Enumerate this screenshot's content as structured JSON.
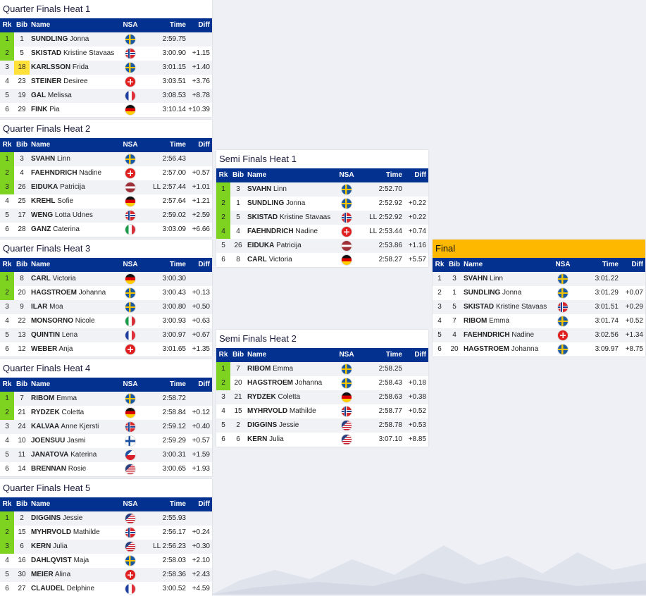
{
  "headers": {
    "rk": "Rk",
    "bib": "Bib",
    "name": "Name",
    "nsa": "NSA",
    "time": "Time",
    "diff": "Diff"
  },
  "heats": [
    {
      "title": "Quarter Finals Heat 1",
      "rows": [
        {
          "rk": "1",
          "bib": "1",
          "last": "SUNDLING",
          "first": "Jonna",
          "flag": "SWE",
          "time": "2:59.75",
          "diff": "",
          "q": true
        },
        {
          "rk": "2",
          "bib": "5",
          "last": "SKISTAD",
          "first": "Kristine Stavaas",
          "flag": "NOR",
          "time": "3:00.90",
          "diff": "+1.15",
          "q": true
        },
        {
          "rk": "3",
          "bib": "18",
          "last": "KARLSSON",
          "first": "Frida",
          "flag": "SWE",
          "time": "3:01.15",
          "diff": "+1.40",
          "bibHighlight": true
        },
        {
          "rk": "4",
          "bib": "23",
          "last": "STEINER",
          "first": "Desiree",
          "flag": "SUI",
          "time": "3:03.51",
          "diff": "+3.76"
        },
        {
          "rk": "5",
          "bib": "19",
          "last": "GAL",
          "first": "Melissa",
          "flag": "FRA",
          "time": "3:08.53",
          "diff": "+8.78"
        },
        {
          "rk": "6",
          "bib": "29",
          "last": "FINK",
          "first": "Pia",
          "flag": "GER",
          "time": "3:10.14",
          "diff": "+10.39"
        }
      ]
    },
    {
      "title": "Quarter Finals Heat 2",
      "rows": [
        {
          "rk": "1",
          "bib": "3",
          "last": "SVAHN",
          "first": "Linn",
          "flag": "SWE",
          "time": "2:56.43",
          "diff": "",
          "q": true
        },
        {
          "rk": "2",
          "bib": "4",
          "last": "FAEHNDRICH",
          "first": "Nadine",
          "flag": "SUI",
          "time": "2:57.00",
          "diff": "+0.57",
          "q": true
        },
        {
          "rk": "3",
          "bib": "26",
          "last": "EIDUKA",
          "first": "Patricija",
          "flag": "LAT",
          "time": "LL 2:57.44",
          "diff": "+1.01",
          "q": true
        },
        {
          "rk": "4",
          "bib": "25",
          "last": "KREHL",
          "first": "Sofie",
          "flag": "GER",
          "time": "2:57.64",
          "diff": "+1.21"
        },
        {
          "rk": "5",
          "bib": "17",
          "last": "WENG",
          "first": "Lotta Udnes",
          "flag": "NOR",
          "time": "2:59.02",
          "diff": "+2.59"
        },
        {
          "rk": "6",
          "bib": "28",
          "last": "GANZ",
          "first": "Caterina",
          "flag": "ITA",
          "time": "3:03.09",
          "diff": "+6.66"
        }
      ]
    },
    {
      "title": "Quarter Finals Heat 3",
      "rows": [
        {
          "rk": "1",
          "bib": "8",
          "last": "CARL",
          "first": "Victoria",
          "flag": "GER",
          "time": "3:00.30",
          "diff": "",
          "q": true
        },
        {
          "rk": "2",
          "bib": "20",
          "last": "HAGSTROEM",
          "first": "Johanna",
          "flag": "SWE",
          "time": "3:00.43",
          "diff": "+0.13",
          "q": true
        },
        {
          "rk": "3",
          "bib": "9",
          "last": "ILAR",
          "first": "Moa",
          "flag": "SWE",
          "time": "3:00.80",
          "diff": "+0.50"
        },
        {
          "rk": "4",
          "bib": "22",
          "last": "MONSORNO",
          "first": "Nicole",
          "flag": "ITA",
          "time": "3:00.93",
          "diff": "+0.63"
        },
        {
          "rk": "5",
          "bib": "13",
          "last": "QUINTIN",
          "first": "Lena",
          "flag": "FRA",
          "time": "3:00.97",
          "diff": "+0.67"
        },
        {
          "rk": "6",
          "bib": "12",
          "last": "WEBER",
          "first": "Anja",
          "flag": "SUI",
          "time": "3:01.65",
          "diff": "+1.35"
        }
      ]
    },
    {
      "title": "Quarter Finals Heat 4",
      "rows": [
        {
          "rk": "1",
          "bib": "7",
          "last": "RIBOM",
          "first": "Emma",
          "flag": "SWE",
          "time": "2:58.72",
          "diff": "",
          "q": true
        },
        {
          "rk": "2",
          "bib": "21",
          "last": "RYDZEK",
          "first": "Coletta",
          "flag": "GER",
          "time": "2:58.84",
          "diff": "+0.12",
          "q": true
        },
        {
          "rk": "3",
          "bib": "24",
          "last": "KALVAA",
          "first": "Anne Kjersti",
          "flag": "NOR",
          "time": "2:59.12",
          "diff": "+0.40"
        },
        {
          "rk": "4",
          "bib": "10",
          "last": "JOENSUU",
          "first": "Jasmi",
          "flag": "FIN",
          "time": "2:59.29",
          "diff": "+0.57"
        },
        {
          "rk": "5",
          "bib": "11",
          "last": "JANATOVA",
          "first": "Katerina",
          "flag": "CZE",
          "time": "3:00.31",
          "diff": "+1.59"
        },
        {
          "rk": "6",
          "bib": "14",
          "last": "BRENNAN",
          "first": "Rosie",
          "flag": "USA",
          "time": "3:00.65",
          "diff": "+1.93"
        }
      ]
    },
    {
      "title": "Quarter Finals Heat 5",
      "rows": [
        {
          "rk": "1",
          "bib": "2",
          "last": "DIGGINS",
          "first": "Jessie",
          "flag": "USA",
          "time": "2:55.93",
          "diff": "",
          "q": true
        },
        {
          "rk": "2",
          "bib": "15",
          "last": "MYHRVOLD",
          "first": "Mathilde",
          "flag": "NOR",
          "time": "2:56.17",
          "diff": "+0.24",
          "q": true
        },
        {
          "rk": "3",
          "bib": "6",
          "last": "KERN",
          "first": "Julia",
          "flag": "USA",
          "time": "LL 2:56.23",
          "diff": "+0.30",
          "q": true
        },
        {
          "rk": "4",
          "bib": "16",
          "last": "DAHLQVIST",
          "first": "Maja",
          "flag": "SWE",
          "time": "2:58.03",
          "diff": "+2.10"
        },
        {
          "rk": "5",
          "bib": "30",
          "last": "MEIER",
          "first": "Alina",
          "flag": "SUI",
          "time": "2:58.36",
          "diff": "+2.43"
        },
        {
          "rk": "6",
          "bib": "27",
          "last": "CLAUDEL",
          "first": "Delphine",
          "flag": "FRA",
          "time": "3:00.52",
          "diff": "+4.59"
        }
      ]
    },
    {
      "title": "Semi Finals Heat 1",
      "rows": [
        {
          "rk": "1",
          "bib": "3",
          "last": "SVAHN",
          "first": "Linn",
          "flag": "SWE",
          "time": "2:52.70",
          "diff": "",
          "q": true
        },
        {
          "rk": "2",
          "bib": "1",
          "last": "SUNDLING",
          "first": "Jonna",
          "flag": "SWE",
          "time": "2:52.92",
          "diff": "+0.22",
          "q": true
        },
        {
          "rk": "2",
          "bib": "5",
          "last": "SKISTAD",
          "first": "Kristine Stavaas",
          "flag": "NOR",
          "time": "LL 2:52.92",
          "diff": "+0.22",
          "q": true
        },
        {
          "rk": "4",
          "bib": "4",
          "last": "FAEHNDRICH",
          "first": "Nadine",
          "flag": "SUI",
          "time": "LL 2:53.44",
          "diff": "+0.74",
          "q": true
        },
        {
          "rk": "5",
          "bib": "26",
          "last": "EIDUKA",
          "first": "Patricija",
          "flag": "LAT",
          "time": "2:53.86",
          "diff": "+1.16"
        },
        {
          "rk": "6",
          "bib": "8",
          "last": "CARL",
          "first": "Victoria",
          "flag": "GER",
          "time": "2:58.27",
          "diff": "+5.57"
        }
      ]
    },
    {
      "title": "Semi Finals Heat 2",
      "rows": [
        {
          "rk": "1",
          "bib": "7",
          "last": "RIBOM",
          "first": "Emma",
          "flag": "SWE",
          "time": "2:58.25",
          "diff": "",
          "q": true
        },
        {
          "rk": "2",
          "bib": "20",
          "last": "HAGSTROEM",
          "first": "Johanna",
          "flag": "SWE",
          "time": "2:58.43",
          "diff": "+0.18",
          "q": true
        },
        {
          "rk": "3",
          "bib": "21",
          "last": "RYDZEK",
          "first": "Coletta",
          "flag": "GER",
          "time": "2:58.63",
          "diff": "+0.38"
        },
        {
          "rk": "4",
          "bib": "15",
          "last": "MYHRVOLD",
          "first": "Mathilde",
          "flag": "NOR",
          "time": "2:58.77",
          "diff": "+0.52"
        },
        {
          "rk": "5",
          "bib": "2",
          "last": "DIGGINS",
          "first": "Jessie",
          "flag": "USA",
          "time": "2:58.78",
          "diff": "+0.53"
        },
        {
          "rk": "6",
          "bib": "6",
          "last": "KERN",
          "first": "Julia",
          "flag": "USA",
          "time": "3:07.10",
          "diff": "+8.85"
        }
      ]
    },
    {
      "title": "Final",
      "rows": [
        {
          "rk": "1",
          "bib": "3",
          "last": "SVAHN",
          "first": "Linn",
          "flag": "SWE",
          "time": "3:01.22",
          "diff": ""
        },
        {
          "rk": "2",
          "bib": "1",
          "last": "SUNDLING",
          "first": "Jonna",
          "flag": "SWE",
          "time": "3:01.29",
          "diff": "+0.07"
        },
        {
          "rk": "3",
          "bib": "5",
          "last": "SKISTAD",
          "first": "Kristine Stavaas",
          "flag": "NOR",
          "time": "3:01.51",
          "diff": "+0.29"
        },
        {
          "rk": "4",
          "bib": "7",
          "last": "RIBOM",
          "first": "Emma",
          "flag": "SWE",
          "time": "3:01.74",
          "diff": "+0.52"
        },
        {
          "rk": "5",
          "bib": "4",
          "last": "FAEHNDRICH",
          "first": "Nadine",
          "flag": "SUI",
          "time": "3:02.56",
          "diff": "+1.34"
        },
        {
          "rk": "6",
          "bib": "20",
          "last": "HAGSTROEM",
          "first": "Johanna",
          "flag": "SWE",
          "time": "3:09.97",
          "diff": "+8.75"
        }
      ]
    }
  ]
}
